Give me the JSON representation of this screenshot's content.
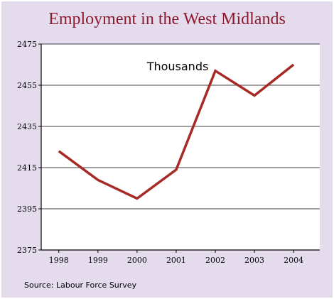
{
  "chart_data": {
    "type": "line",
    "title": "Employment in the West Midlands",
    "annotation": "Thousands",
    "source": "Source: Labour Force Survey",
    "categories": [
      "1998",
      "1999",
      "2000",
      "2001",
      "2002",
      "2003",
      "2004"
    ],
    "series": [
      {
        "values": [
          2423,
          2409,
          2400,
          2414,
          2462,
          2450,
          2465
        ]
      }
    ],
    "ylim": [
      2375,
      2475
    ],
    "yticks": [
      2375,
      2395,
      2415,
      2435,
      2455,
      2475
    ],
    "grid": true,
    "colors": {
      "line": "#a62a26",
      "background": "#e4dced",
      "plot": "#ffffff",
      "title": "#8c1a2e"
    }
  }
}
